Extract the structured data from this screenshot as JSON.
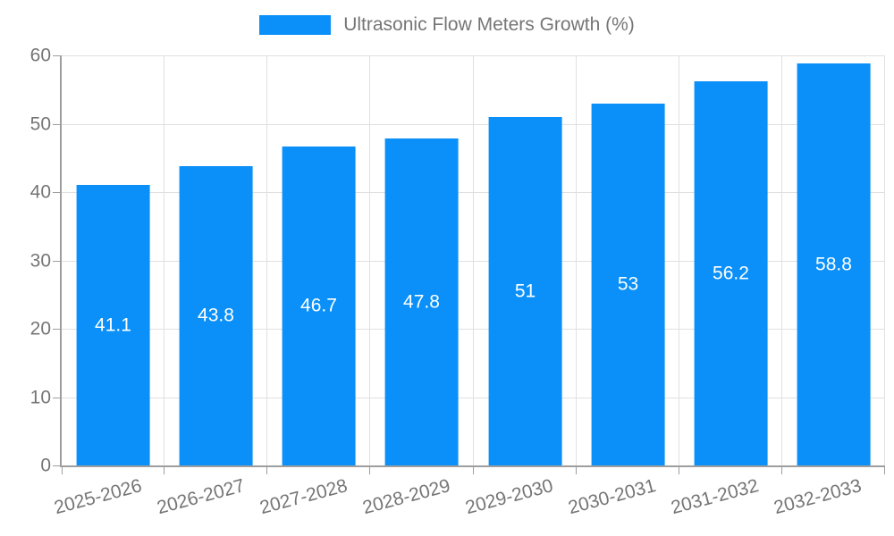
{
  "page": {
    "background": "#ffffff"
  },
  "legend": {
    "label": "Ultrasonic Flow Meters Growth (%)"
  },
  "chart_data": {
    "type": "bar",
    "title": "",
    "legend": "Ultrasonic Flow Meters Growth (%)",
    "legend_position": "top-center",
    "categories": [
      "2025-2026",
      "2026-2027",
      "2027-2028",
      "2028-2029",
      "2029-2030",
      "2030-2031",
      "2031-2032",
      "2032-2033"
    ],
    "values": [
      41.1,
      43.8,
      46.7,
      47.8,
      51,
      53,
      56.2,
      58.8
    ],
    "value_labels": [
      "41.1",
      "43.8",
      "46.7",
      "47.8",
      "51",
      "53",
      "56.2",
      "58.8"
    ],
    "xlabel": "",
    "ylabel": "",
    "ylim": [
      0,
      60
    ],
    "y_ticks": [
      0,
      10,
      20,
      30,
      40,
      50,
      60
    ],
    "y_tick_labels": [
      "0",
      "10",
      "20",
      "30",
      "40",
      "50",
      "60"
    ],
    "grid": true,
    "x_tick_rotation_deg": -15,
    "bar_color": "#0a90f8",
    "value_label_color": "#ffffff",
    "tick_label_color": "#757575",
    "grid_color": "#e0e0e0",
    "axis_color": "#9e9e9e",
    "background_color": "#ffffff"
  }
}
